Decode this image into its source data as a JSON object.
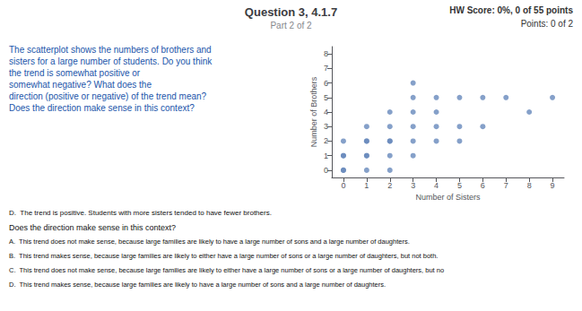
{
  "chart_data": {
    "type": "scatter",
    "title": "Question 3, 4.1.7",
    "subtitle": "Part 2 of 2",
    "x": [
      0,
      0,
      0,
      0,
      0,
      1,
      1,
      1,
      1,
      1,
      1,
      2,
      2,
      2,
      2,
      2,
      2,
      3,
      3,
      3,
      3,
      3,
      3,
      4,
      4,
      4,
      4,
      5,
      5,
      5,
      6,
      6,
      7,
      8,
      9
    ],
    "values": [
      0,
      0,
      1,
      1,
      2,
      0,
      1,
      1,
      2,
      2,
      3,
      0,
      1,
      2,
      2,
      3,
      4,
      1,
      2,
      3,
      4,
      5,
      6,
      2,
      3,
      4,
      5,
      2,
      3,
      5,
      3,
      5,
      5,
      4,
      5
    ],
    "color": "#6688bb",
    "xlabel": "Number of Sisters",
    "ylabel": "Number of Brothers",
    "xlim": [
      -0.5,
      9.5
    ],
    "ylim": [
      -0.5,
      8.5
    ],
    "xticks": [
      0,
      1,
      2,
      3,
      4,
      5,
      6,
      7,
      8,
      9
    ],
    "yticks": [
      0,
      1,
      2,
      3,
      4,
      5,
      6,
      7,
      8
    ],
    "grid": false,
    "annotations": [
      "HW Score: 0%, 0 of 55 points",
      "Points: 0 of 2",
      "The scatterplot shows the numbers of brothers and",
      "sisters for a large number of students. Do you think",
      "the trend is somewhat positive or",
      "somewhat negative? What does the",
      "direction (positive or negative) of the trend mean?",
      "Does the direction make sense in this context?",
      "D.  The trend is positive. Students with more sisters tended to have fewer brothers.",
      "Does the direction make sense in this context?",
      "A.  This trend does not make sense, because large families are likely to have a large number of sons and a large number of daughters.",
      "B.  This trend makes sense, because large families are likely to either have a large number of sons or a large number of daughters, but not both.",
      "C.  This trend does not make sense, because large families are likely to either have a large number of sons or a large number of daughters, but no",
      "D.  This trend makes sense, because large families are likely to have a large number of sons and a large number of daughters."
    ]
  }
}
